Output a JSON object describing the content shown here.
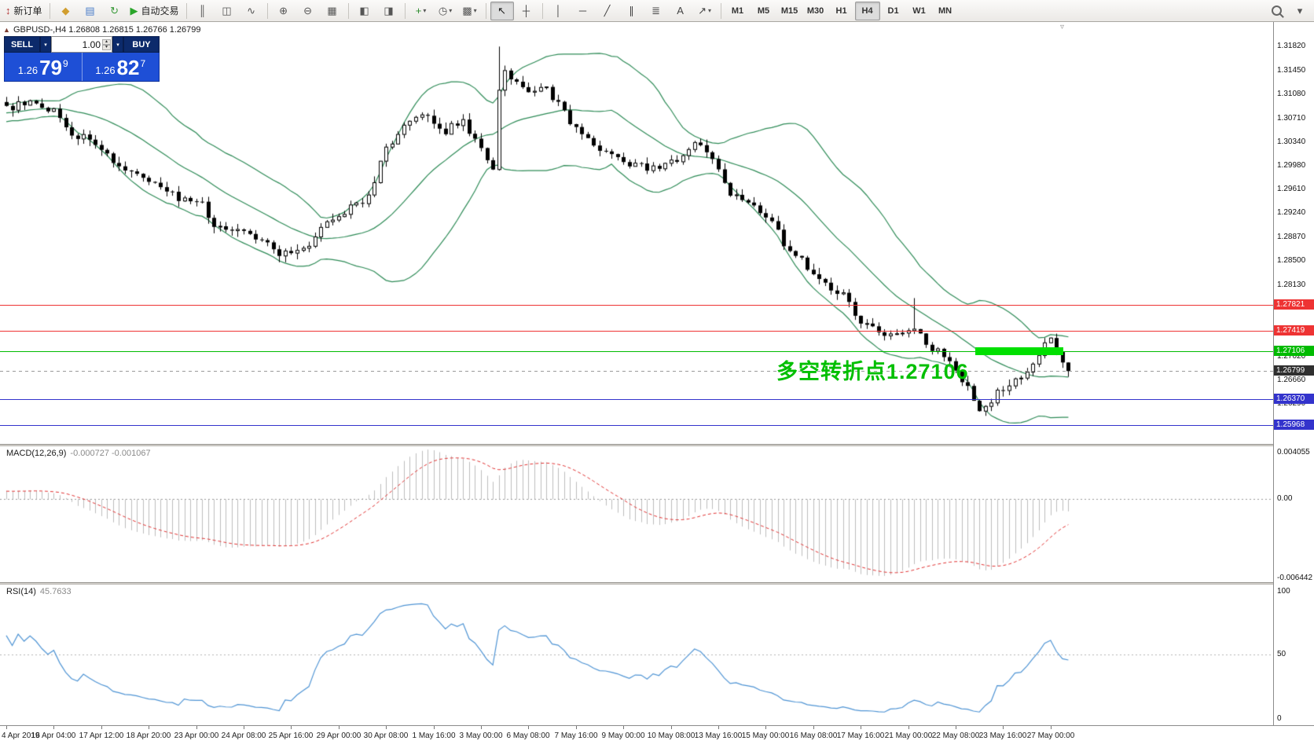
{
  "icons": {
    "chevron_down": "▾",
    "spinner_up": "▴",
    "spinner_down": "▾",
    "panel_toggle": "▲",
    "shift_marker": "▿"
  },
  "toolbar": {
    "groups": [
      {
        "items": [
          {
            "name": "new-order-button",
            "icon_name": "new-order-icon",
            "glyph": "↕",
            "color": "#b23333",
            "label": "新订单"
          }
        ]
      },
      {
        "items": [
          {
            "name": "market-watch-button",
            "icon_name": "market-watch-icon",
            "glyph": "◆",
            "color": "#d19e2f"
          },
          {
            "name": "data-window-button",
            "icon_name": "data-window-icon",
            "glyph": "▤",
            "color": "#4a7dc9"
          },
          {
            "name": "navigator-button",
            "icon_name": "refresh-icon",
            "glyph": "↻",
            "color": "#3a9a3a"
          },
          {
            "name": "autotrading-button",
            "icon_name": "play-icon",
            "glyph": "▶",
            "color": "#2aa52a",
            "label": "自动交易"
          }
        ]
      },
      {
        "items": [
          {
            "name": "bar-chart-button",
            "icon_name": "bar-chart-icon",
            "glyph": "║",
            "color": "#555555"
          },
          {
            "name": "candlestick-chart-button",
            "icon_name": "candlestick-icon",
            "glyph": "◫",
            "color": "#555555"
          },
          {
            "name": "line-chart-button",
            "icon_name": "line-chart-icon",
            "glyph": "∿",
            "color": "#555555"
          }
        ]
      },
      {
        "items": [
          {
            "name": "zoom-in-button",
            "icon_name": "zoom-in-icon",
            "glyph": "⊕",
            "color": "#555555"
          },
          {
            "name": "zoom-out-button",
            "icon_name": "zoom-out-icon",
            "glyph": "⊖",
            "color": "#555555"
          },
          {
            "name": "tile-windows-button",
            "icon_name": "tile-windows-icon",
            "glyph": "▦",
            "color": "#555555"
          }
        ]
      },
      {
        "items": [
          {
            "name": "arrange-charts-button",
            "icon_name": "arrange-icon",
            "glyph": "◧",
            "color": "#555555"
          },
          {
            "name": "cascade-charts-button",
            "icon_name": "cascade-icon",
            "glyph": "◨",
            "color": "#555555"
          }
        ]
      },
      {
        "items": [
          {
            "name": "indicators-button",
            "icon_name": "indicators-plus-icon",
            "glyph": "+",
            "color": "#2a8a2a",
            "dropdown": true
          },
          {
            "name": "periods-button",
            "icon_name": "clock-icon",
            "glyph": "◷",
            "color": "#555555",
            "dropdown": true
          },
          {
            "name": "templates-button",
            "icon_name": "template-icon",
            "glyph": "▩",
            "color": "#555555",
            "dropdown": true
          }
        ]
      },
      {
        "items": [
          {
            "name": "cursor-button",
            "icon_name": "cursor-icon",
            "glyph": "↖",
            "color": "#222222",
            "pressed": true
          },
          {
            "name": "crosshair-button",
            "icon_name": "crosshair-icon",
            "glyph": "┼",
            "color": "#444444"
          }
        ]
      },
      {
        "items": [
          {
            "name": "vertical-line-button",
            "icon_name": "vertical-line-icon",
            "glyph": "│",
            "color": "#444444"
          },
          {
            "name": "horizontal-line-button",
            "icon_name": "horizontal-line-icon",
            "glyph": "─",
            "color": "#444444"
          },
          {
            "name": "trendline-button",
            "icon_name": "trendline-icon",
            "glyph": "╱",
            "color": "#444444"
          },
          {
            "name": "channel-button",
            "icon_name": "channel-icon",
            "glyph": "∥",
            "color": "#444444"
          },
          {
            "name": "fibonacci-button",
            "icon_name": "fibonacci-icon",
            "glyph": "≣",
            "color": "#444444"
          },
          {
            "name": "text-button",
            "icon_name": "text-icon",
            "glyph": "A",
            "color": "#444444"
          },
          {
            "name": "arrows-button",
            "icon_name": "arrow-tool-icon",
            "glyph": "↗",
            "color": "#444444",
            "dropdown": true
          }
        ]
      }
    ],
    "timeframes": [
      "M1",
      "M5",
      "M15",
      "M30",
      "H1",
      "H4",
      "D1",
      "W1",
      "MN"
    ],
    "active_timeframe": "H4",
    "right_items": [
      {
        "name": "search-button",
        "shape": "magnifier",
        "icon_name": "search-icon"
      },
      {
        "name": "toolbar-options-button",
        "icon_name": "chevron-down-icon",
        "glyph": "▾",
        "color": "#555555"
      }
    ]
  },
  "chart": {
    "legend": "GBPUSD-,H4 1.26808 1.26815 1.26766 1.26799",
    "symbol": "GBPUSD-",
    "timeframe": "H4",
    "annotation": "多空转折点1.27106",
    "trade_panel": {
      "sell_label": "SELL",
      "buy_label": "BUY",
      "volume": "1.00",
      "sell_price_prefix": "1.26",
      "sell_price_big": "79",
      "sell_price_sup": "9",
      "buy_price_prefix": "1.26",
      "buy_price_big": "82",
      "buy_price_sup": "7"
    }
  },
  "macd_panel": {
    "name": "MACD(12,26,9)",
    "values": "-0.000727 -0.001067",
    "axis_labels": [
      "0.004055",
      "0.00",
      "-0.006442"
    ]
  },
  "rsi_panel": {
    "name": "RSI(14)",
    "value": "45.7633",
    "axis_labels": [
      "100",
      "50",
      "0"
    ]
  },
  "colors": {
    "band_green": "#2E8B57",
    "bull_body": "#ffffff",
    "bear_body": "#000000",
    "candle_outline": "#000000",
    "macd_histogram": "#bdbdbd",
    "macd_signal_red": "#e03232",
    "rsi_blue": "#4f94d4",
    "level_red": "#ee3333",
    "level_green": "#00bb00",
    "level_blue": "#3333cc",
    "current_price_tag": "#2f2f2f",
    "highlight_green": "#00e000",
    "annotation_green": "#00bf00",
    "trade_panel_dark": "#0c2a6b",
    "trade_panel_blue": "#1e4fd6"
  },
  "chart_data": [
    {
      "type": "candlestick",
      "title": "GBPUSD- H4",
      "symbol": "GBPUSD-",
      "period": "H4",
      "ohlc_current": {
        "open": 1.26808,
        "high": 1.26815,
        "low": 1.26766,
        "close": 1.26799
      },
      "ylim": [
        1.2566,
        1.322
      ],
      "candle_count": 180,
      "last_close": 1.26799,
      "price_path": [
        [
          0.0,
          1.3085
        ],
        [
          0.022,
          1.31
        ],
        [
          0.048,
          1.3078
        ],
        [
          0.059,
          1.3042
        ],
        [
          0.074,
          1.3046
        ],
        [
          0.107,
          1.2998
        ],
        [
          0.132,
          1.298
        ],
        [
          0.162,
          1.2946
        ],
        [
          0.185,
          1.2938
        ],
        [
          0.195,
          1.2906
        ],
        [
          0.221,
          1.2898
        ],
        [
          0.243,
          1.2882
        ],
        [
          0.256,
          1.2858
        ],
        [
          0.283,
          1.2868
        ],
        [
          0.301,
          1.2912
        ],
        [
          0.32,
          1.2928
        ],
        [
          0.34,
          1.2948
        ],
        [
          0.357,
          1.3022
        ],
        [
          0.375,
          1.3058
        ],
        [
          0.393,
          1.3078
        ],
        [
          0.41,
          1.3048
        ],
        [
          0.429,
          1.3068
        ],
        [
          0.445,
          1.3028
        ],
        [
          0.459,
          1.2992
        ],
        [
          0.465,
          1.3148
        ],
        [
          0.476,
          1.3128
        ],
        [
          0.493,
          1.3108
        ],
        [
          0.507,
          1.3118
        ],
        [
          0.526,
          1.3078
        ],
        [
          0.542,
          1.3042
        ],
        [
          0.563,
          1.3018
        ],
        [
          0.584,
          1.2998
        ],
        [
          0.607,
          1.2994
        ],
        [
          0.632,
          1.3006
        ],
        [
          0.647,
          1.3034
        ],
        [
          0.661,
          1.3018
        ],
        [
          0.68,
          1.2958
        ],
        [
          0.697,
          1.2938
        ],
        [
          0.717,
          1.2918
        ],
        [
          0.732,
          1.2878
        ],
        [
          0.75,
          1.2848
        ],
        [
          0.768,
          1.2818
        ],
        [
          0.787,
          1.2798
        ],
        [
          0.804,
          1.2758
        ],
        [
          0.822,
          1.2738
        ],
        [
          0.84,
          1.2736
        ],
        [
          0.853,
          1.275
        ],
        [
          0.87,
          1.2718
        ],
        [
          0.888,
          1.2698
        ],
        [
          0.905,
          1.2652
        ],
        [
          0.915,
          1.2612
        ],
        [
          0.935,
          1.265
        ],
        [
          0.952,
          1.2668
        ],
        [
          0.971,
          1.27
        ],
        [
          0.982,
          1.2732
        ],
        [
          1.0,
          1.268
        ]
      ],
      "tall_candle": {
        "f": 0.465,
        "high": 1.3182
      },
      "spike_wick": {
        "f": 0.853,
        "extra": 0.0045
      },
      "bollinger": {
        "period": 20,
        "deviation": 2
      },
      "levels": [
        {
          "price": 1.27821,
          "label": "1.27821",
          "color_key": "red"
        },
        {
          "price": 1.27419,
          "label": "1.27419",
          "color_key": "red"
        },
        {
          "price": 1.27106,
          "label": "1.27106",
          "color_key": "green"
        },
        {
          "price": 1.2637,
          "label": "1.26370",
          "color_key": "blue"
        },
        {
          "price": 1.25968,
          "label": "1.25968",
          "color_key": "blue"
        }
      ],
      "current_price": 1.26799,
      "current_price_label": "1.26799",
      "highlight_rect": {
        "price": 1.27106,
        "f_start": 0.912,
        "f_end": 0.995
      },
      "axis_labels": [
        "1.31820",
        "1.31450",
        "1.31080",
        "1.30710",
        "1.30340",
        "1.29980",
        "1.29610",
        "1.29240",
        "1.28870",
        "1.28500",
        "1.28130",
        "1.27020",
        "1.26660",
        "1.26290"
      ],
      "x_labels": [
        "4 Apr 2019",
        "16 Apr 04:00",
        "17 Apr 12:00",
        "18 Apr 20:00",
        "23 Apr 00:00",
        "24 Apr 08:00",
        "25 Apr 16:00",
        "29 Apr 00:00",
        "30 Apr 08:00",
        "1 May 16:00",
        "3 May 00:00",
        "6 May 08:00",
        "7 May 16:00",
        "9 May 00:00",
        "10 May 08:00",
        "13 May 16:00",
        "15 May 00:00",
        "16 May 08:00",
        "17 May 16:00",
        "21 May 00:00",
        "22 May 08:00",
        "23 May 16:00",
        "27 May 00:00"
      ]
    },
    {
      "type": "bar",
      "name": "MACD(12,26,9)",
      "params": [
        12,
        26,
        9
      ],
      "ylim": [
        -0.006442,
        0.004055
      ],
      "current_macd": -0.000727,
      "current_signal": -0.001067
    },
    {
      "type": "line",
      "name": "RSI(14)",
      "period": 14,
      "ylim": [
        0,
        100
      ],
      "current": 45.7633,
      "gridline": 50
    }
  ]
}
